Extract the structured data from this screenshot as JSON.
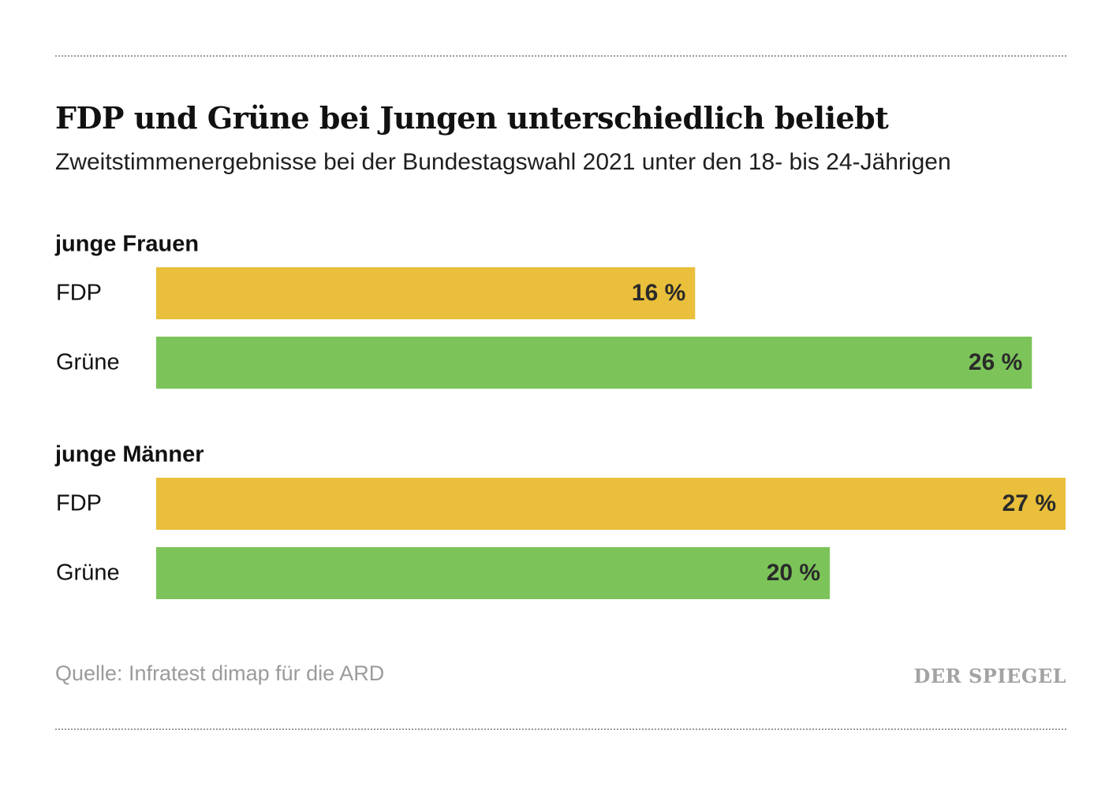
{
  "header": {
    "title": "FDP und Grüne bei Jungen unterschiedlich beliebt",
    "subtitle": "Zweitstimmenergebnisse bei der Bundestagswahl 2021 unter den 18- bis 24-Jährigen"
  },
  "footer": {
    "source": "Quelle: Infratest dimap für die ARD",
    "logo": "DER SPIEGEL"
  },
  "colors": {
    "FDP": "#e9bf3b",
    "Grüne": "#7cc45a"
  },
  "chart_data": {
    "type": "bar",
    "orientation": "horizontal",
    "title": "FDP und Grüne bei Jungen unterschiedlich beliebt",
    "subtitle": "Zweitstimmenergebnisse bei der Bundestagswahl 2021 unter den 18- bis 24-Jährigen",
    "unit": "%",
    "xlim": [
      0,
      27
    ],
    "grid": false,
    "groups": [
      {
        "label": "junge Frauen",
        "bars": [
          {
            "category": "FDP",
            "value": 16,
            "label": "16 %"
          },
          {
            "category": "Grüne",
            "value": 26,
            "label": "26 %"
          }
        ]
      },
      {
        "label": "junge Männer",
        "bars": [
          {
            "category": "FDP",
            "value": 27,
            "label": "27 %"
          },
          {
            "category": "Grüne",
            "value": 20,
            "label": "20 %"
          }
        ]
      }
    ]
  }
}
